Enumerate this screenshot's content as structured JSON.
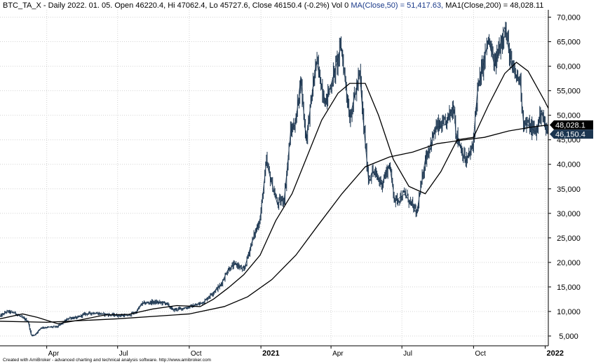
{
  "header": {
    "symbol_line": "BTC_TA_X - Daily 2022. 01. 05. Open 46220.4, Hi 47062.4, Lo 45727.6, Close 46150.4 (-0.2%) Vol 0",
    "ma50_text": "MA(Close,50) = 51,417.63,",
    "ma200_text": "MA1(Close,200) = 48,028.11"
  },
  "footer": {
    "credit": "Created with AmiBroker - advanced charting and technical analysis software. http://www.amibroker.com"
  },
  "last_values": {
    "ma200_label": "48,028.1",
    "close_label": "46,150.4",
    "ma200": 48028.11,
    "close": 46150.4
  },
  "colors": {
    "price": "#1b3550",
    "ma": "#000000",
    "grid": "#d4d4d4",
    "ma_badge": "#000000",
    "close_badge": "#1b3550"
  },
  "chart_data": {
    "type": "line",
    "title": "BTC_TA_X - Daily",
    "xlabel": "",
    "ylabel": "",
    "x_range": [
      "2020-02-01",
      "2022-01-05"
    ],
    "ylim": [
      3000,
      71500
    ],
    "y_scale": "linear",
    "grid": true,
    "y_ticks": [
      {
        "value": 5000,
        "label": "5,000"
      },
      {
        "value": 10000,
        "label": "10,000"
      },
      {
        "value": 15000,
        "label": "15,000"
      },
      {
        "value": 20000,
        "label": "20,000"
      },
      {
        "value": 25000,
        "label": "25,000"
      },
      {
        "value": 30000,
        "label": "30,000"
      },
      {
        "value": 35000,
        "label": "35,000"
      },
      {
        "value": 40000,
        "label": "40,000"
      },
      {
        "value": 45000,
        "label": "45,000"
      },
      {
        "value": 50000,
        "label": "50,000"
      },
      {
        "value": 55000,
        "label": "55,000"
      },
      {
        "value": 60000,
        "label": "60,000"
      },
      {
        "value": 65000,
        "label": "65,000"
      },
      {
        "value": 70000,
        "label": "70,000"
      }
    ],
    "x_ticks": [
      {
        "date": "2020-04-01",
        "label": "Apr",
        "major": false
      },
      {
        "date": "2020-07-01",
        "label": "Jul",
        "major": false
      },
      {
        "date": "2020-10-01",
        "label": "Oct",
        "major": false
      },
      {
        "date": "2021-01-01",
        "label": "2021",
        "major": true
      },
      {
        "date": "2021-04-01",
        "label": "Apr",
        "major": false
      },
      {
        "date": "2021-07-01",
        "label": "Jul",
        "major": false
      },
      {
        "date": "2021-10-01",
        "label": "Oct",
        "major": false
      },
      {
        "date": "2022-01-01",
        "label": "2022",
        "major": true
      }
    ],
    "series": [
      {
        "name": "BTC_TA_X",
        "style": "price",
        "points": [
          [
            "2020-02-01",
            9000
          ],
          [
            "2020-02-10",
            10000
          ],
          [
            "2020-02-20",
            9700
          ],
          [
            "2020-03-01",
            8700
          ],
          [
            "2020-03-08",
            8000
          ],
          [
            "2020-03-12",
            5200
          ],
          [
            "2020-03-16",
            5100
          ],
          [
            "2020-03-25",
            6700
          ],
          [
            "2020-04-05",
            6800
          ],
          [
            "2020-04-15",
            6900
          ],
          [
            "2020-04-30",
            8700
          ],
          [
            "2020-05-10",
            8700
          ],
          [
            "2020-05-20",
            9500
          ],
          [
            "2020-06-01",
            9700
          ],
          [
            "2020-06-15",
            9400
          ],
          [
            "2020-07-01",
            9200
          ],
          [
            "2020-07-15",
            9200
          ],
          [
            "2020-07-25",
            9900
          ],
          [
            "2020-08-01",
            11600
          ],
          [
            "2020-08-15",
            11900
          ],
          [
            "2020-09-01",
            11700
          ],
          [
            "2020-09-10",
            10300
          ],
          [
            "2020-09-25",
            10700
          ],
          [
            "2020-10-10",
            11300
          ],
          [
            "2020-10-20",
            12000
          ],
          [
            "2020-10-31",
            13800
          ],
          [
            "2020-11-10",
            15300
          ],
          [
            "2020-11-20",
            18600
          ],
          [
            "2020-11-30",
            19700
          ],
          [
            "2020-12-10",
            18300
          ],
          [
            "2020-12-20",
            24000
          ],
          [
            "2020-12-31",
            29000
          ],
          [
            "2021-01-08",
            40500
          ],
          [
            "2021-01-15",
            36000
          ],
          [
            "2021-01-22",
            32000
          ],
          [
            "2021-01-31",
            33000
          ],
          [
            "2021-02-08",
            46500
          ],
          [
            "2021-02-15",
            49000
          ],
          [
            "2021-02-21",
            57500
          ],
          [
            "2021-02-28",
            45000
          ],
          [
            "2021-03-13",
            61000
          ],
          [
            "2021-03-25",
            52500
          ],
          [
            "2021-04-05",
            58500
          ],
          [
            "2021-04-14",
            64000
          ],
          [
            "2021-04-25",
            49500
          ],
          [
            "2021-05-08",
            58500
          ],
          [
            "2021-05-12",
            49500
          ],
          [
            "2021-05-19",
            37000
          ],
          [
            "2021-05-25",
            38500
          ],
          [
            "2021-06-05",
            36000
          ],
          [
            "2021-06-15",
            40000
          ],
          [
            "2021-06-22",
            32500
          ],
          [
            "2021-07-05",
            34000
          ],
          [
            "2021-07-20",
            30000
          ],
          [
            "2021-07-31",
            41000
          ],
          [
            "2021-08-14",
            47500
          ],
          [
            "2021-08-25",
            48000
          ],
          [
            "2021-09-06",
            52000
          ],
          [
            "2021-09-08",
            46500
          ],
          [
            "2021-09-21",
            40500
          ],
          [
            "2021-09-30",
            43500
          ],
          [
            "2021-10-06",
            55000
          ],
          [
            "2021-10-15",
            61500
          ],
          [
            "2021-10-20",
            65500
          ],
          [
            "2021-10-28",
            60000
          ],
          [
            "2021-11-10",
            68000
          ],
          [
            "2021-11-20",
            59000
          ],
          [
            "2021-11-30",
            57000
          ],
          [
            "2021-12-04",
            48500
          ],
          [
            "2021-12-10",
            48000
          ],
          [
            "2021-12-20",
            46500
          ],
          [
            "2021-12-27",
            51000
          ],
          [
            "2022-01-01",
            47500
          ],
          [
            "2022-01-05",
            46150
          ]
        ]
      },
      {
        "name": "MA(Close,50)",
        "style": "ma",
        "points": [
          [
            "2020-02-01",
            8500
          ],
          [
            "2020-03-01",
            9500
          ],
          [
            "2020-03-20",
            8800
          ],
          [
            "2020-04-15",
            7500
          ],
          [
            "2020-05-15",
            8300
          ],
          [
            "2020-06-15",
            9300
          ],
          [
            "2020-07-15",
            9400
          ],
          [
            "2020-08-15",
            10500
          ],
          [
            "2020-09-15",
            11200
          ],
          [
            "2020-10-15",
            11000
          ],
          [
            "2020-11-01",
            12500
          ],
          [
            "2020-11-20",
            14800
          ],
          [
            "2020-12-10",
            17500
          ],
          [
            "2020-12-31",
            21500
          ],
          [
            "2021-01-20",
            28500
          ],
          [
            "2021-02-10",
            34000
          ],
          [
            "2021-03-01",
            41500
          ],
          [
            "2021-03-20",
            49000
          ],
          [
            "2021-04-10",
            54500
          ],
          [
            "2021-04-25",
            56500
          ],
          [
            "2021-05-15",
            56500
          ],
          [
            "2021-06-01",
            50000
          ],
          [
            "2021-06-20",
            41000
          ],
          [
            "2021-07-10",
            35500
          ],
          [
            "2021-07-31",
            34000
          ],
          [
            "2021-08-20",
            38500
          ],
          [
            "2021-09-10",
            45000
          ],
          [
            "2021-10-01",
            45500
          ],
          [
            "2021-10-20",
            52000
          ],
          [
            "2021-11-10",
            58500
          ],
          [
            "2021-11-25",
            60800
          ],
          [
            "2021-12-10",
            59000
          ],
          [
            "2021-12-31",
            53000
          ],
          [
            "2022-01-05",
            51417
          ]
        ]
      },
      {
        "name": "MA1(Close,200)",
        "style": "ma",
        "points": [
          [
            "2020-02-01",
            8000
          ],
          [
            "2020-04-01",
            7800
          ],
          [
            "2020-07-01",
            8500
          ],
          [
            "2020-10-01",
            9500
          ],
          [
            "2020-11-15",
            11000
          ],
          [
            "2020-12-15",
            13000
          ],
          [
            "2021-01-15",
            16500
          ],
          [
            "2021-02-15",
            21500
          ],
          [
            "2021-03-15",
            27500
          ],
          [
            "2021-04-15",
            34000
          ],
          [
            "2021-05-15",
            39500
          ],
          [
            "2021-06-15",
            41500
          ],
          [
            "2021-07-15",
            42500
          ],
          [
            "2021-08-15",
            44200
          ],
          [
            "2021-09-15",
            44900
          ],
          [
            "2021-10-15",
            45500
          ],
          [
            "2021-11-15",
            46800
          ],
          [
            "2021-12-15",
            47600
          ],
          [
            "2022-01-05",
            48028
          ]
        ]
      }
    ]
  }
}
